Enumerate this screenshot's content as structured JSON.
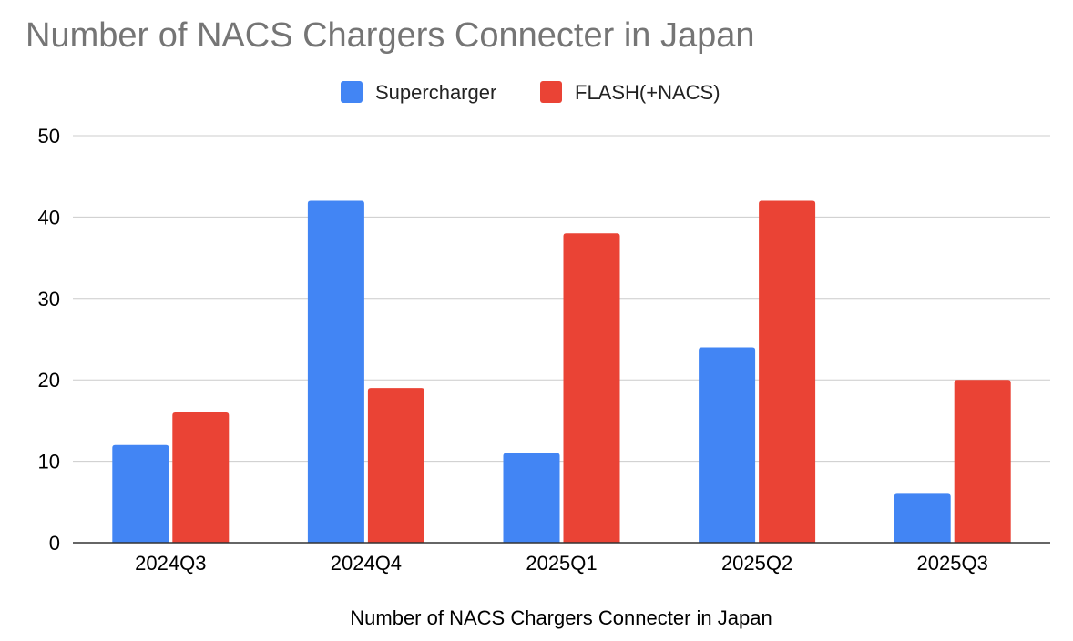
{
  "chart_data": {
    "type": "bar",
    "title": "Number of NACS Chargers Connecter in Japan",
    "xlabel": "Number of NACS Chargers Connecter in Japan",
    "ylabel": "",
    "categories": [
      "2024Q3",
      "2024Q4",
      "2025Q1",
      "2025Q2",
      "2025Q3"
    ],
    "series": [
      {
        "name": "Supercharger",
        "color": "#4285f4",
        "values": [
          12,
          42,
          11,
          24,
          6
        ]
      },
      {
        "name": "FLASH(+NACS)",
        "color": "#ea4335",
        "values": [
          16,
          19,
          38,
          42,
          20
        ]
      }
    ],
    "ylim": [
      0,
      50
    ],
    "yticks": [
      0,
      10,
      20,
      30,
      40,
      50
    ],
    "grid": true,
    "legend_position": "top-center"
  }
}
